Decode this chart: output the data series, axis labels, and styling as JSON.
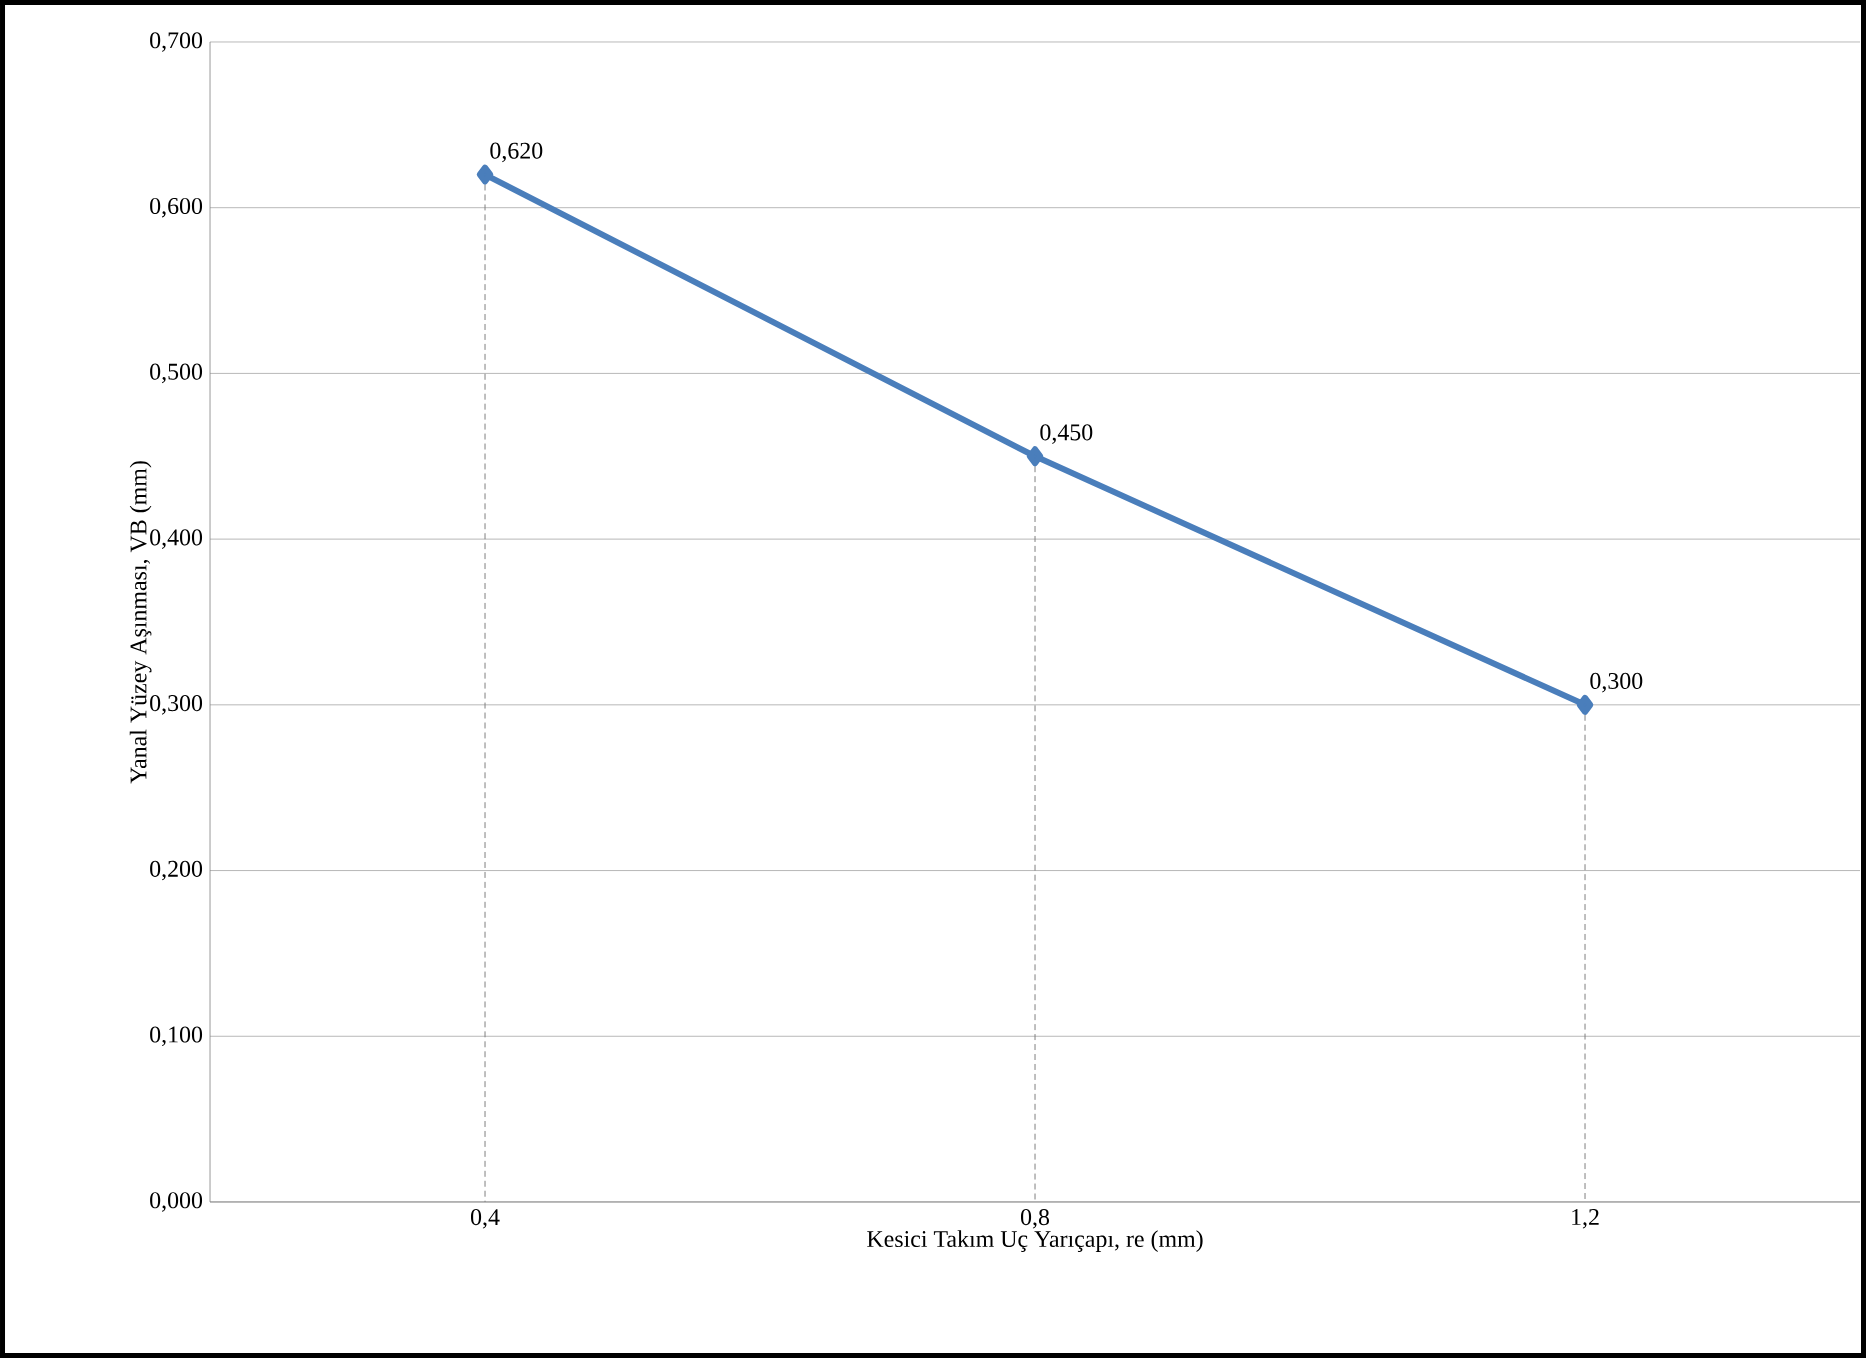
{
  "chart_data": {
    "type": "line",
    "xlabel": "Kesici Takım Uç Yarıçapı, re (mm)",
    "ylabel": "Yanal Yüzey Aşınması, VB (mm)",
    "categories": [
      "0,4",
      "0,8",
      "1,2"
    ],
    "series": [
      {
        "color": "#4a7ebb",
        "values": [
          0.62,
          0.45,
          0.3
        ],
        "value_labels": [
          "0,620",
          "0,450",
          "0,300"
        ],
        "errors": [
          [
            0.62,
            0
          ],
          [
            0.45,
            0
          ],
          [
            0.3,
            0
          ]
        ]
      }
    ],
    "ylim": [
      0,
      0.7
    ],
    "yticks": [
      {
        "value": 0,
        "label": "0,000"
      },
      {
        "value": 0.1,
        "label": "0,100"
      },
      {
        "value": 0.2,
        "label": "0,200"
      },
      {
        "value": 0.3,
        "label": "0,300"
      },
      {
        "value": 0.4,
        "label": "0,400"
      },
      {
        "value": 0.5,
        "label": "0,500"
      },
      {
        "value": 0.6,
        "label": "0,600"
      },
      {
        "value": 0.7,
        "label": "0,700"
      }
    ],
    "grid": "y",
    "marker": "diamond",
    "line_style": "solid"
  }
}
